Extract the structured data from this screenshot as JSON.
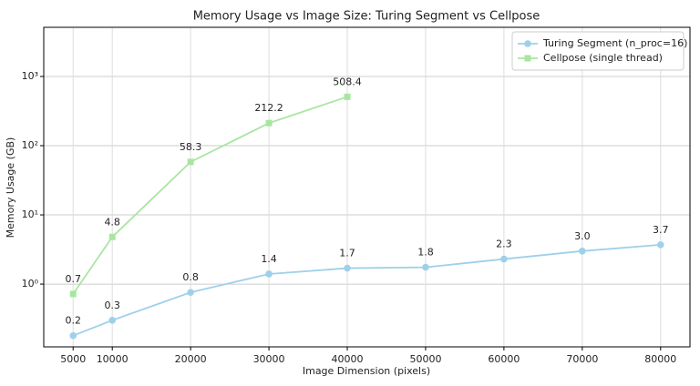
{
  "chart_data": {
    "type": "line",
    "title": "Memory Usage vs Image Size: Turing Segment vs Cellpose",
    "x_label": "Image Dimension (pixels)",
    "y_label": "Memory Usage (GB)",
    "log_y": true,
    "grid": true,
    "legend": "upper right",
    "xlim": [
      1250,
      83750
    ],
    "xticks": [
      5000,
      10000,
      20000,
      30000,
      40000,
      50000,
      60000,
      70000,
      80000
    ],
    "ylim": [
      0.124,
      5130
    ],
    "yticks": [
      {
        "value": 1,
        "label": "10⁰"
      },
      {
        "value": 10,
        "label": "10¹"
      },
      {
        "value": 100,
        "label": "10²"
      },
      {
        "value": 1000,
        "label": "10³"
      }
    ],
    "series": [
      {
        "name": "Turing Segment (n_proc=16)",
        "color": "#9ed0ea",
        "marker": "circle",
        "x": [
          5000,
          10000,
          20000,
          30000,
          40000,
          50000,
          60000,
          70000,
          80000
        ],
        "values": [
          0.18,
          0.3,
          0.76,
          1.4,
          1.7,
          1.75,
          2.3,
          3.0,
          3.7
        ],
        "value_labels": [
          "0.2",
          "0.3",
          "0.8",
          "1.4",
          "1.7",
          "1.8",
          "2.3",
          "3.0",
          "3.7"
        ]
      },
      {
        "name": "Cellpose (single thread)",
        "color": "#a8e6a0",
        "marker": "square",
        "x": [
          5000,
          10000,
          20000,
          30000,
          40000
        ],
        "values": [
          0.72,
          4.8,
          58.3,
          212.2,
          508.4
        ],
        "value_labels": [
          "0.7",
          "4.8",
          "58.3",
          "212.2",
          "508.4"
        ]
      }
    ]
  }
}
